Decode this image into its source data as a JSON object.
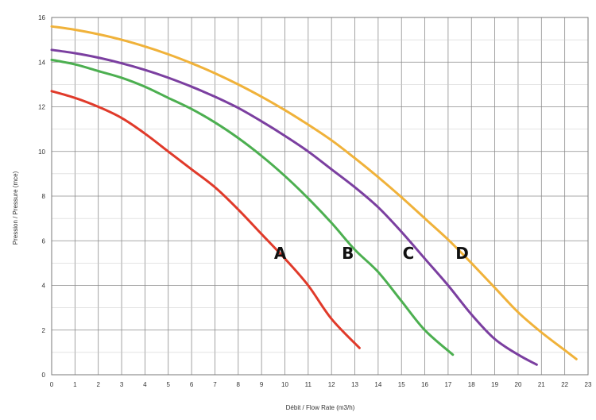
{
  "chart_data": {
    "type": "line",
    "title": "",
    "xlabel": "Débit / Flow Rate (m3/h)",
    "ylabel": "Pression / Pressure (mce)",
    "xlim": [
      0,
      23
    ],
    "ylim": [
      0,
      16
    ],
    "xticks": [
      "0",
      "1",
      "2",
      "3",
      "4",
      "5",
      "6",
      "7",
      "8",
      "9",
      "10",
      "11",
      "12",
      "13",
      "14",
      "15",
      "16",
      "17",
      "18",
      "19",
      "20",
      "21",
      "22",
      "23"
    ],
    "yticks": [
      "0",
      "2",
      "4",
      "6",
      "8",
      "10",
      "12",
      "14",
      "16"
    ],
    "grid": true,
    "series": [
      {
        "name": "A",
        "color": "#e03a2a",
        "x": [
          0,
          1,
          2,
          3,
          4,
          5,
          6,
          7,
          8,
          9,
          10,
          11,
          12,
          13.2
        ],
        "y": [
          12.7,
          12.4,
          12.0,
          11.5,
          10.8,
          10.0,
          9.2,
          8.4,
          7.4,
          6.3,
          5.2,
          4.0,
          2.5,
          1.2
        ],
        "label_at": [
          9.8,
          5.2
        ]
      },
      {
        "name": "B",
        "color": "#4caf50",
        "x": [
          0,
          1,
          2,
          3,
          4,
          5,
          6,
          7,
          8,
          9,
          10,
          11,
          12,
          13,
          14,
          15,
          16,
          17.2
        ],
        "y": [
          14.1,
          13.9,
          13.6,
          13.3,
          12.9,
          12.4,
          11.9,
          11.3,
          10.6,
          9.8,
          8.9,
          7.9,
          6.8,
          5.6,
          4.6,
          3.3,
          2.0,
          0.9
        ],
        "label_at": [
          12.7,
          5.2
        ]
      },
      {
        "name": "C",
        "color": "#7b3fa0",
        "x": [
          0,
          1,
          2,
          3,
          4,
          5,
          6,
          7,
          8,
          9,
          10,
          11,
          12,
          13,
          14,
          15,
          16,
          17,
          18,
          19,
          20,
          20.8
        ],
        "y": [
          14.55,
          14.4,
          14.2,
          13.95,
          13.65,
          13.3,
          12.9,
          12.45,
          11.95,
          11.35,
          10.7,
          10.0,
          9.2,
          8.4,
          7.5,
          6.4,
          5.2,
          4.0,
          2.7,
          1.6,
          0.9,
          0.45
        ],
        "label_at": [
          15.3,
          5.2
        ]
      },
      {
        "name": "D",
        "color": "#f0b23a",
        "x": [
          0,
          1,
          2,
          3,
          4,
          5,
          6,
          7,
          8,
          9,
          10,
          11,
          12,
          13,
          14,
          15,
          16,
          17,
          18,
          19,
          20,
          21,
          22,
          22.5
        ],
        "y": [
          15.6,
          15.45,
          15.25,
          15.0,
          14.7,
          14.35,
          13.95,
          13.5,
          13.0,
          12.45,
          11.85,
          11.2,
          10.5,
          9.7,
          8.85,
          7.95,
          7.0,
          6.05,
          5.0,
          3.9,
          2.8,
          1.9,
          1.1,
          0.7
        ],
        "label_at": [
          17.6,
          5.2
        ]
      }
    ]
  }
}
